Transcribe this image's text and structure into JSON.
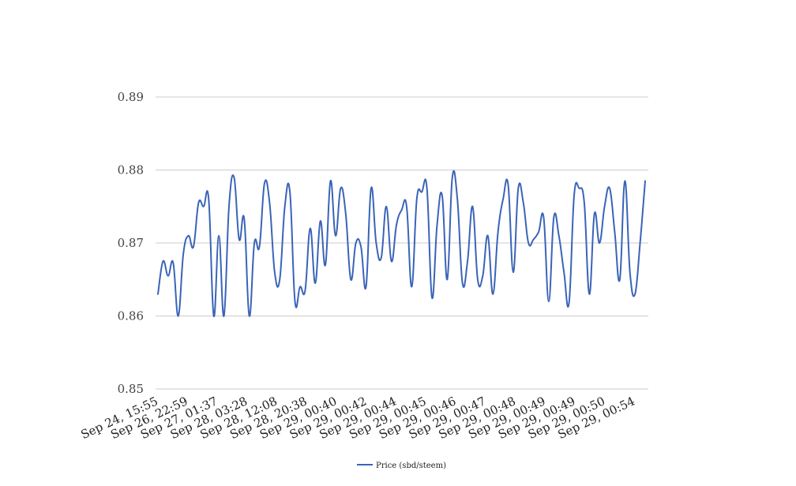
{
  "chart_data": {
    "type": "line",
    "title": "",
    "xlabel": "",
    "ylabel": "",
    "ylim": [
      0.85,
      0.89
    ],
    "yticks": [
      "0.85",
      "0.86",
      "0.87",
      "0.88",
      "0.89"
    ],
    "grid": true,
    "legend_position": "bottom",
    "x_tick_labels": [
      "Sep 24, 15:55",
      "Sep 26, 22:59",
      "Sep 27, 01:37",
      "Sep 28, 03:28",
      "Sep 28, 12:08",
      "Sep 28, 20:38",
      "Sep 29, 00:40",
      "Sep 29, 00:42",
      "Sep 29, 00:44",
      "Sep 29, 00:45",
      "Sep 29, 00:46",
      "Sep 29, 00:47",
      "Sep 29, 00:48",
      "Sep 29, 00:49",
      "Sep 29, 00:49",
      "Sep 29, 00:50",
      "Sep 29, 00:54"
    ],
    "series": [
      {
        "name": "Price (sbd/steem)",
        "color": "#3a64b8",
        "values": [
          0.863,
          0.8675,
          0.8655,
          0.8673,
          0.86,
          0.8685,
          0.871,
          0.8695,
          0.8755,
          0.875,
          0.876,
          0.86,
          0.871,
          0.86,
          0.875,
          0.879,
          0.8705,
          0.8733,
          0.86,
          0.87,
          0.8695,
          0.8782,
          0.8755,
          0.866,
          0.865,
          0.875,
          0.877,
          0.862,
          0.864,
          0.8635,
          0.872,
          0.8645,
          0.873,
          0.867,
          0.8785,
          0.871,
          0.8775,
          0.874,
          0.865,
          0.87,
          0.8695,
          0.864,
          0.8775,
          0.87,
          0.868,
          0.875,
          0.8675,
          0.8725,
          0.8745,
          0.875,
          0.864,
          0.876,
          0.877,
          0.8775,
          0.8625,
          0.8725,
          0.8765,
          0.865,
          0.879,
          0.876,
          0.8645,
          0.8675,
          0.875,
          0.865,
          0.8655,
          0.871,
          0.863,
          0.8715,
          0.876,
          0.878,
          0.866,
          0.8775,
          0.8755,
          0.87,
          0.8705,
          0.8715,
          0.8735,
          0.862,
          0.8735,
          0.871,
          0.866,
          0.8618,
          0.8765,
          0.8775,
          0.8755,
          0.863,
          0.874,
          0.87,
          0.875,
          0.8775,
          0.8715,
          0.865,
          0.8785,
          0.866,
          0.863,
          0.87,
          0.8785
        ]
      }
    ]
  }
}
